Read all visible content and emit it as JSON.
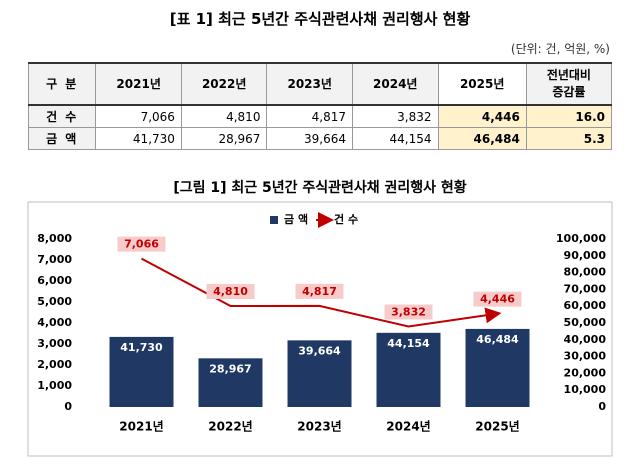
{
  "table_title": "[표 1] 최근 5년간 주식관련사채 권리행사 현황",
  "unit": "(단위: 건, 억원, %)",
  "table": {
    "header": [
      "구 분",
      "2021년",
      "2022년",
      "2023년",
      "2024년",
      "2025년",
      "전년대비\n증감률"
    ],
    "rows": [
      [
        "건 수",
        "7,066",
        "4,810",
        "4,817",
        "3,832",
        "4,446",
        "16.0"
      ],
      [
        "금 액",
        "41,730",
        "28,967",
        "39,664",
        "44,154",
        "46,484",
        "5.3"
      ]
    ]
  },
  "chart_data": {
    "type": "bar-line",
    "title": "[그림 1] 최근 5년간 주식관련사채 권리행사 현황",
    "categories": [
      "2021년",
      "2022년",
      "2023년",
      "2024년",
      "2025년"
    ],
    "series": [
      {
        "name": "금 액",
        "type": "bar",
        "axis": "y2",
        "color": "#1f3864",
        "values": [
          41730,
          28967,
          39664,
          44154,
          46484
        ],
        "value_labels": [
          "41,730",
          "28,967",
          "39,664",
          "44,154",
          "46,484"
        ]
      },
      {
        "name": "건 수",
        "type": "line",
        "color": "#c00000",
        "values": [
          7066,
          4810,
          4817,
          3832,
          4446
        ],
        "value_labels": [
          "7,066",
          "4,810",
          "4,817",
          "3,832",
          "4,446"
        ]
      }
    ],
    "ylim": [
      0,
      8000
    ],
    "yticks": [
      0,
      {
        "value": 1000,
        "label": "1,000"
      },
      {
        "value": 2000,
        "label": "2,000"
      },
      {
        "value": 3000,
        "label": "3,000"
      },
      {
        "value": 4000,
        "label": "4,000"
      },
      {
        "value": 5000,
        "label": "5,000"
      },
      {
        "value": 6000,
        "label": "6,000"
      },
      {
        "value": 7000,
        "label": "7,000"
      },
      {
        "value": 8000,
        "label": "8,000"
      }
    ],
    "y2lim": [
      0,
      100000
    ],
    "y2ticks": [
      0,
      {
        "value": 10000,
        "label": "10,000"
      },
      {
        "value": 20000,
        "label": "20,000"
      },
      {
        "value": 30000,
        "label": "30,000"
      },
      {
        "value": 40000,
        "label": "40,000"
      },
      {
        "value": 50000,
        "label": "50,000"
      },
      {
        "value": 60000,
        "label": "60,000"
      },
      {
        "value": 70000,
        "label": "70,000"
      },
      {
        "value": 80000,
        "label": "80,000"
      },
      {
        "value": 90000,
        "label": "90,000"
      },
      {
        "value": 100000,
        "label": "100,000"
      }
    ],
    "legend": "top"
  }
}
